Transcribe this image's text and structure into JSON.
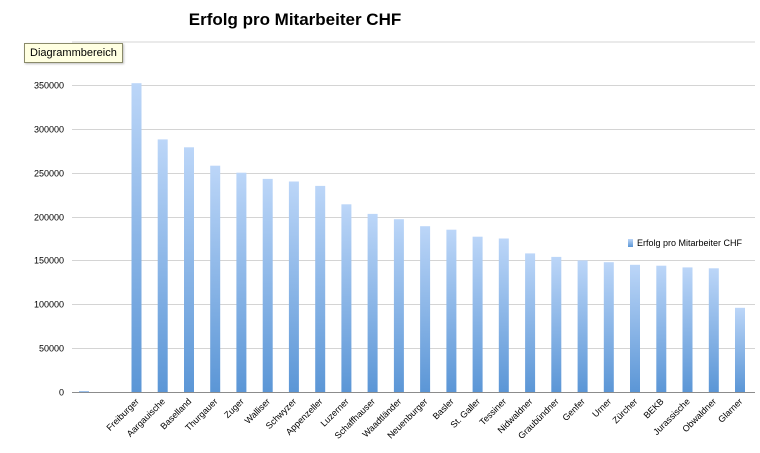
{
  "tooltip": "Diagrammbereich",
  "chart_data": {
    "type": "bar",
    "title": "Erfolg pro Mitarbeiter CHF",
    "xlabel": "",
    "ylabel": "",
    "ylim": [
      0,
      350000
    ],
    "yticks": [
      "0",
      "50000",
      "100000",
      "150000",
      "200000",
      "250000",
      "300000",
      "350000"
    ],
    "grid": true,
    "legend": "right",
    "categories": [
      "",
      "",
      "Freiburger",
      "Aargauische",
      "Baselland",
      "Thurgauer",
      "Zuger",
      "Walliser",
      "Schwyzer",
      "Appenzeller",
      "Luzerner",
      "Schaffhauser",
      "Waadtländer",
      "Neuenburger",
      "Basler",
      "St. Galler",
      "Tessiner",
      "Nidwaldner",
      "Graubündner",
      "Genfer",
      "Urner",
      "Zürcher",
      "BEKB",
      "Jurassische",
      "Obwaldner",
      "Glarner"
    ],
    "series": [
      {
        "name": "Erfolg pro Mitarbeiter CHF",
        "values": [
          1000,
          0,
          352000,
          288000,
          279000,
          258000,
          250000,
          243000,
          240000,
          235000,
          214000,
          203000,
          197000,
          189000,
          185000,
          177000,
          175000,
          158000,
          154000,
          150000,
          148000,
          145000,
          144000,
          142000,
          141000,
          96000
        ]
      }
    ],
    "colors": {
      "bar_top": "#bcd6f8",
      "bar_bottom": "#5b96d6",
      "grid": "#d4d4d4"
    }
  }
}
